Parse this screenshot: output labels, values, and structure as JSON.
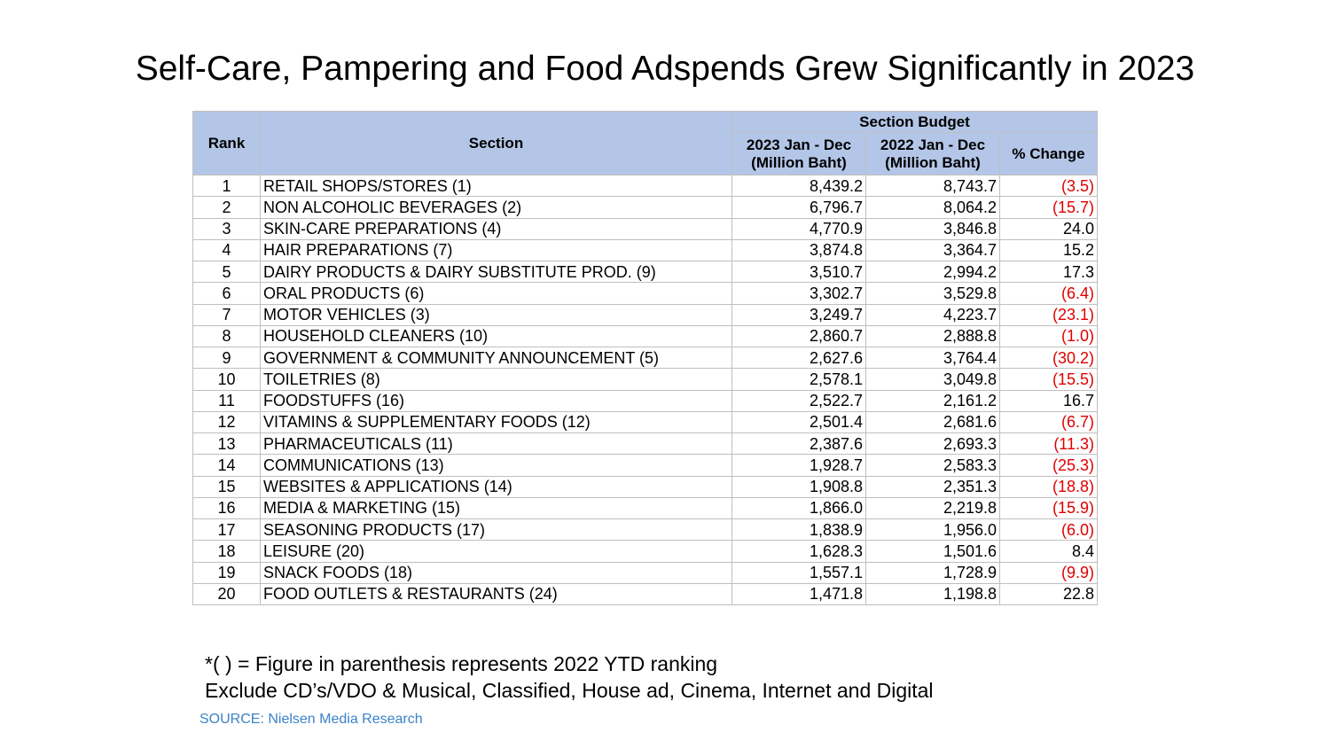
{
  "title": "Self-Care, Pampering and Food Adspends Grew Significantly in 2023",
  "table": {
    "header": {
      "rank": "Rank",
      "section": "Section",
      "budget": "Section Budget",
      "col2023": [
        "2023 Jan - Dec",
        "(Million Baht)"
      ],
      "col2022": [
        "2022 Jan - Dec",
        "(Million Baht)"
      ],
      "change": "% Change"
    },
    "rows": [
      [
        "1",
        "RETAIL SHOPS/STORES (1)",
        "8,439.2",
        "8,743.7",
        "(3.5)"
      ],
      [
        "2",
        "NON ALCOHOLIC BEVERAGES (2)",
        "6,796.7",
        "8,064.2",
        "(15.7)"
      ],
      [
        "3",
        "SKIN-CARE PREPARATIONS (4)",
        "4,770.9",
        "3,846.8",
        "24.0"
      ],
      [
        "4",
        "HAIR PREPARATIONS (7)",
        "3,874.8",
        "3,364.7",
        "15.2"
      ],
      [
        "5",
        "DAIRY PRODUCTS & DAIRY SUBSTITUTE PROD. (9)",
        "3,510.7",
        "2,994.2",
        "17.3"
      ],
      [
        "6",
        "ORAL PRODUCTS (6)",
        "3,302.7",
        "3,529.8",
        "(6.4)"
      ],
      [
        "7",
        "MOTOR VEHICLES (3)",
        "3,249.7",
        "4,223.7",
        "(23.1)"
      ],
      [
        "8",
        "HOUSEHOLD CLEANERS (10)",
        "2,860.7",
        "2,888.8",
        "(1.0)"
      ],
      [
        "9",
        "GOVERNMENT & COMMUNITY ANNOUNCEMENT (5)",
        "2,627.6",
        "3,764.4",
        "(30.2)"
      ],
      [
        "10",
        "TOILETRIES (8)",
        "2,578.1",
        "3,049.8",
        "(15.5)"
      ],
      [
        "11",
        "FOODSTUFFS (16)",
        "2,522.7",
        "2,161.2",
        "16.7"
      ],
      [
        "12",
        "VITAMINS & SUPPLEMENTARY FOODS (12)",
        "2,501.4",
        "2,681.6",
        "(6.7)"
      ],
      [
        "13",
        "PHARMACEUTICALS (11)",
        "2,387.6",
        "2,693.3",
        "(11.3)"
      ],
      [
        "14",
        "COMMUNICATIONS (13)",
        "1,928.7",
        "2,583.3",
        "(25.3)"
      ],
      [
        "15",
        "WEBSITES & APPLICATIONS (14)",
        "1,908.8",
        "2,351.3",
        "(18.8)"
      ],
      [
        "16",
        "MEDIA & MARKETING (15)",
        "1,866.0",
        "2,219.8",
        "(15.9)"
      ],
      [
        "17",
        "SEASONING PRODUCTS (17)",
        "1,838.9",
        "1,956.0",
        "(6.0)"
      ],
      [
        "18",
        "LEISURE (20)",
        "1,628.3",
        "1,501.6",
        "8.4"
      ],
      [
        "19",
        "SNACK FOODS (18)",
        "1,557.1",
        "1,728.9",
        "(9.9)"
      ],
      [
        "20",
        "FOOD OUTLETS & RESTAURANTS (24)",
        "1,471.8",
        "1,198.8",
        "22.8"
      ]
    ]
  },
  "notes": [
    "*( ) = Figure in parenthesis represents 2022 YTD ranking",
    "Exclude CD’s/VDO & Musical, Classified, House ad, Cinema, Internet and Digital"
  ],
  "source": "SOURCE: Nielsen Media Research"
}
